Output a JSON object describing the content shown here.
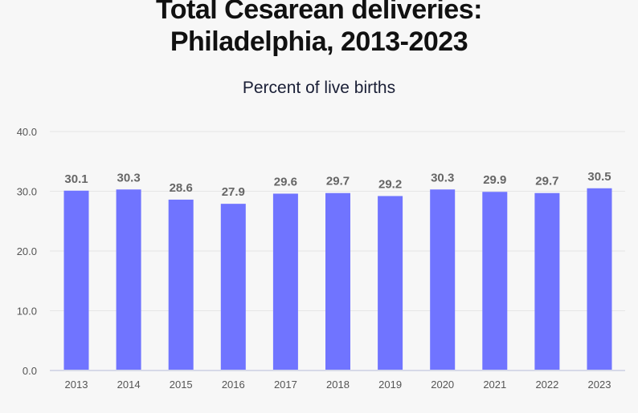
{
  "chart_data": {
    "type": "bar",
    "title": "Total Cesarean deliveries: Philadelphia, 2013-2023",
    "title_lines": [
      "Total Cesarean deliveries:",
      "Philadelphia, 2013-2023"
    ],
    "subtitle": "Percent of live births",
    "categories": [
      "2013",
      "2014",
      "2015",
      "2016",
      "2017",
      "2018",
      "2019",
      "2020",
      "2021",
      "2022",
      "2023"
    ],
    "values": [
      30.1,
      30.3,
      28.6,
      27.9,
      29.6,
      29.7,
      29.2,
      30.3,
      29.9,
      29.7,
      30.5
    ],
    "ylim": [
      0,
      40
    ],
    "yticks": [
      "0.0",
      "10.0",
      "20.0",
      "30.0",
      "40.0"
    ],
    "grid": true,
    "bar_color": "#7074ff",
    "label_color": "#666666"
  }
}
